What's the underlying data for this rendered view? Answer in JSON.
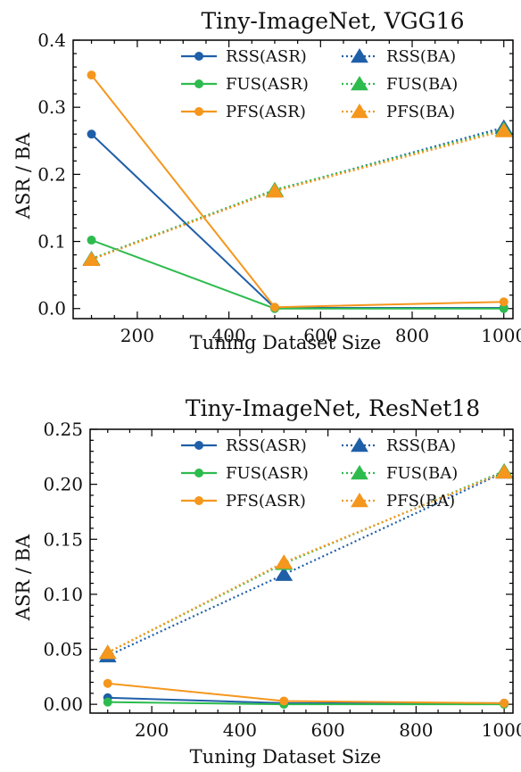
{
  "chart_data": [
    {
      "type": "line",
      "title": "Tiny-ImageNet, VGG16",
      "xlabel": "Tuning Dataset Size",
      "ylabel": "ASR / BA",
      "x": [
        100,
        500,
        1000
      ],
      "xlim": [
        60,
        1020
      ],
      "ylim": [
        -0.015,
        0.4
      ],
      "xticks": [
        200,
        400,
        600,
        800,
        1000
      ],
      "xtick_labels": [
        "200",
        "400",
        "600",
        "800",
        "1000"
      ],
      "yticks": [
        0,
        0.1,
        0.2,
        0.3,
        0.4
      ],
      "ytick_labels": [
        "0.0",
        "0.1",
        "0.2",
        "0.3",
        "0.4"
      ],
      "grid": false,
      "legend_position": "top-right",
      "series": [
        {
          "name": "RSS(ASR)",
          "values": [
            0.26,
            0.001,
            0.001
          ],
          "color": "#1f5fa8",
          "style": "solid",
          "marker": "circle"
        },
        {
          "name": "FUS(ASR)",
          "values": [
            0.102,
            0.0,
            0.0
          ],
          "color": "#2dbb4e",
          "style": "solid",
          "marker": "circle"
        },
        {
          "name": "PFS(ASR)",
          "values": [
            0.348,
            0.002,
            0.01
          ],
          "color": "#f5961d",
          "style": "solid",
          "marker": "circle"
        },
        {
          "name": "RSS(BA)",
          "values": [
            0.074,
            0.176,
            0.27
          ],
          "color": "#1f5fa8",
          "style": "dotted",
          "marker": "triangle"
        },
        {
          "name": "FUS(BA)",
          "values": [
            0.074,
            0.177,
            0.267
          ],
          "color": "#2dbb4e",
          "style": "dotted",
          "marker": "triangle"
        },
        {
          "name": "PFS(BA)",
          "values": [
            0.073,
            0.175,
            0.265
          ],
          "color": "#f5961d",
          "style": "dotted",
          "marker": "triangle"
        }
      ]
    },
    {
      "type": "line",
      "title": "Tiny-ImageNet, ResNet18",
      "xlabel": "Tuning Dataset Size",
      "ylabel": "ASR / BA",
      "x": [
        100,
        500,
        1000
      ],
      "xlim": [
        60,
        1020
      ],
      "ylim": [
        -0.008,
        0.25
      ],
      "xticks": [
        200,
        400,
        600,
        800,
        1000
      ],
      "xtick_labels": [
        "200",
        "400",
        "600",
        "800",
        "1000"
      ],
      "yticks": [
        0,
        0.05,
        0.1,
        0.15,
        0.2,
        0.25
      ],
      "ytick_labels": [
        "0.00",
        "0.05",
        "0.10",
        "0.15",
        "0.20",
        "0.25"
      ],
      "grid": false,
      "legend_position": "top-right",
      "series": [
        {
          "name": "RSS(ASR)",
          "values": [
            0.006,
            0.001,
            0.001
          ],
          "color": "#1f5fa8",
          "style": "solid",
          "marker": "circle"
        },
        {
          "name": "FUS(ASR)",
          "values": [
            0.002,
            0.0,
            0.0
          ],
          "color": "#2dbb4e",
          "style": "solid",
          "marker": "circle"
        },
        {
          "name": "PFS(ASR)",
          "values": [
            0.019,
            0.003,
            0.001
          ],
          "color": "#f5961d",
          "style": "solid",
          "marker": "circle"
        },
        {
          "name": "RSS(BA)",
          "values": [
            0.044,
            0.118,
            0.211
          ],
          "color": "#1f5fa8",
          "style": "dotted",
          "marker": "triangle"
        },
        {
          "name": "FUS(BA)",
          "values": [
            0.047,
            0.128,
            0.212
          ],
          "color": "#2dbb4e",
          "style": "dotted",
          "marker": "triangle"
        },
        {
          "name": "PFS(BA)",
          "values": [
            0.047,
            0.129,
            0.211
          ],
          "color": "#f5961d",
          "style": "dotted",
          "marker": "triangle"
        }
      ]
    }
  ]
}
